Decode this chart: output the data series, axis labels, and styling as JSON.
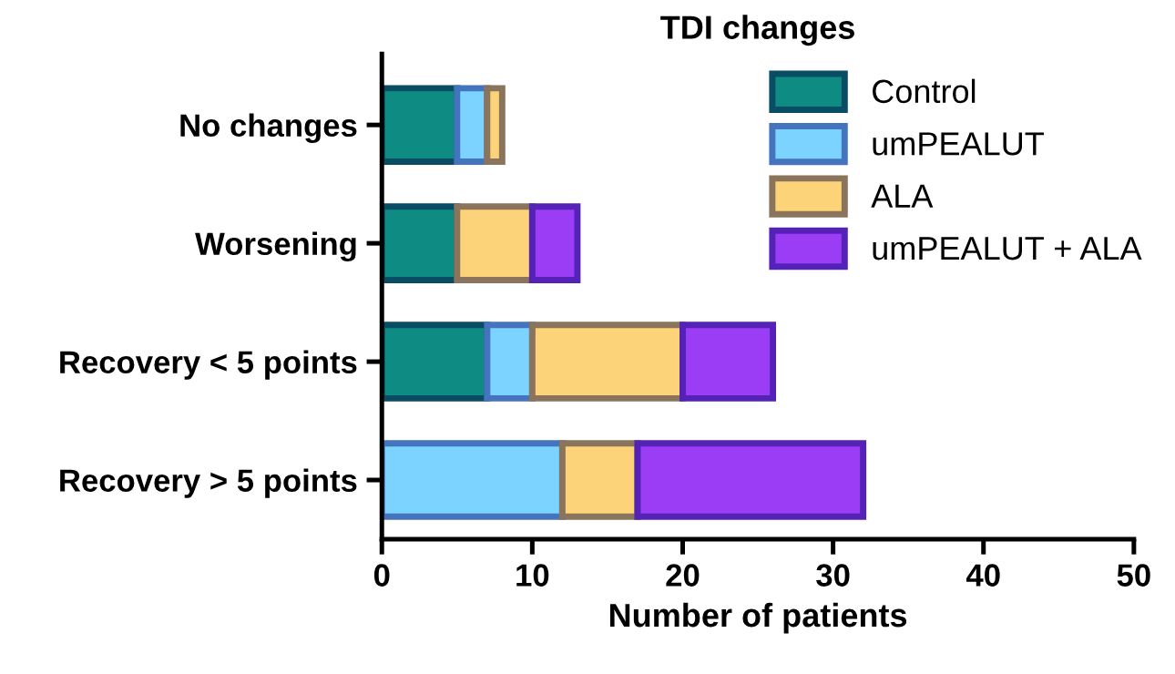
{
  "chart_data": {
    "type": "bar",
    "orientation": "horizontal",
    "stacked": true,
    "title": "TDI changes",
    "xlabel": "Number of patients",
    "categories": [
      "No changes",
      "Worsening",
      "Recovery < 5 points",
      "Recovery > 5 points"
    ],
    "series": [
      {
        "name": "Control",
        "color": "#0e8c84",
        "values": [
          5,
          5,
          7,
          0
        ]
      },
      {
        "name": "umPEALUT",
        "color": "#7dd3ff",
        "values": [
          2,
          0,
          3,
          12
        ]
      },
      {
        "name": "ALA",
        "color": "#fdd37a",
        "values": [
          1,
          5,
          10,
          5
        ]
      },
      {
        "name": "umPEALUT + ALA",
        "color": "#9b3df5",
        "values": [
          0,
          3,
          6,
          15
        ]
      }
    ],
    "xlim": [
      0,
      50
    ],
    "xticks": [
      0,
      10,
      20,
      30,
      40,
      50
    ],
    "grid": false,
    "legend": "top right"
  }
}
